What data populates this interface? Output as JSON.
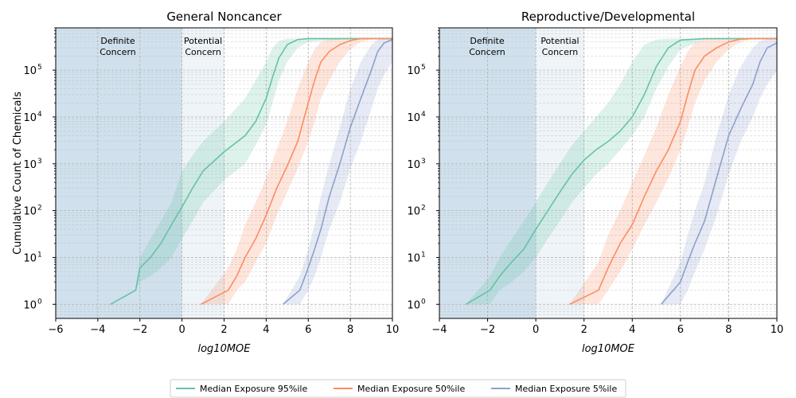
{
  "chart_data": [
    {
      "type": "line",
      "title": "General Noncancer",
      "xlabel": "log10MOE",
      "ylabel": "Cumulative Count of Chemicals",
      "xlim": [
        -6,
        10
      ],
      "ylim": [
        0.5,
        800000
      ],
      "yscale": "log",
      "xticks": [
        -6,
        -4,
        -2,
        0,
        2,
        4,
        6,
        8,
        10
      ],
      "grid": true,
      "regions": [
        {
          "label": "Definite Concern",
          "x0": -6,
          "x1": 0,
          "color": "#a9c9df"
        },
        {
          "label": "Potential Concern",
          "x0": 0,
          "x1": 2,
          "color": "#e3ecf3"
        }
      ],
      "series": [
        {
          "name": "Median Exposure 95%ile",
          "color": "#66c2a5",
          "x": [
            -3.4,
            -2.2,
            -2.0,
            -1.5,
            -1.0,
            -0.5,
            0,
            0.5,
            1.0,
            2.0,
            3.0,
            3.5,
            4.0,
            4.3,
            4.6,
            5.0,
            5.5,
            6.0,
            8.0,
            10.0
          ],
          "y": [
            1,
            2,
            6,
            10,
            20,
            50,
            120,
            300,
            700,
            1800,
            4000,
            8000,
            25000,
            70000,
            180000,
            350000,
            450000,
            470000,
            470000,
            470000
          ],
          "lo": [
            1,
            2,
            3,
            4,
            6,
            10,
            25,
            60,
            150,
            450,
            1000,
            2500,
            7000,
            20000,
            60000,
            150000,
            300000,
            400000,
            470000,
            470000
          ],
          "hi": [
            1,
            2,
            10,
            25,
            60,
            150,
            700,
            1500,
            3000,
            8000,
            25000,
            60000,
            150000,
            300000,
            420000,
            470000,
            470000,
            470000,
            470000,
            470000
          ]
        },
        {
          "name": "Median Exposure 50%ile",
          "color": "#fc8d62",
          "x": [
            0.9,
            2.2,
            2.6,
            3.0,
            3.5,
            4.0,
            4.5,
            5.0,
            5.5,
            6.0,
            6.3,
            6.6,
            7.0,
            7.5,
            8.0,
            8.5,
            9.0,
            10.0
          ],
          "y": [
            1,
            2,
            4,
            10,
            25,
            80,
            300,
            900,
            3000,
            20000,
            60000,
            150000,
            250000,
            350000,
            430000,
            470000,
            470000,
            470000
          ],
          "lo": [
            1,
            1,
            2,
            3,
            8,
            20,
            80,
            250,
            800,
            3000,
            8000,
            25000,
            60000,
            150000,
            280000,
            400000,
            460000,
            470000
          ],
          "hi": [
            1,
            6,
            15,
            50,
            150,
            500,
            2000,
            8000,
            40000,
            150000,
            280000,
            400000,
            460000,
            470000,
            470000,
            470000,
            470000,
            470000
          ]
        },
        {
          "name": "Median Exposure 5%ile",
          "color": "#8da0cb",
          "x": [
            4.8,
            5.6,
            6.0,
            6.3,
            6.6,
            7.0,
            7.5,
            8.0,
            8.5,
            9.0,
            9.3,
            9.6,
            10.0
          ],
          "y": [
            1,
            2,
            6,
            15,
            40,
            200,
            1000,
            6000,
            25000,
            100000,
            250000,
            380000,
            450000
          ],
          "lo": [
            1,
            1,
            2,
            4,
            10,
            40,
            150,
            800,
            3000,
            15000,
            40000,
            80000,
            150000
          ],
          "hi": [
            1,
            4,
            15,
            50,
            200,
            1000,
            6000,
            40000,
            150000,
            350000,
            450000,
            470000,
            470000
          ]
        }
      ]
    },
    {
      "type": "line",
      "title": "Reproductive/Developmental",
      "xlabel": "log10MOE",
      "ylabel": "",
      "xlim": [
        -4,
        10
      ],
      "ylim": [
        0.5,
        800000
      ],
      "yscale": "log",
      "xticks": [
        -4,
        -2,
        0,
        2,
        4,
        6,
        8,
        10
      ],
      "grid": true,
      "regions": [
        {
          "label": "Definite Concern",
          "x0": -4,
          "x1": 0,
          "color": "#a9c9df"
        },
        {
          "label": "Potential Concern",
          "x0": 0,
          "x1": 2,
          "color": "#e3ecf3"
        }
      ],
      "series": [
        {
          "name": "Median Exposure 95%ile",
          "color": "#66c2a5",
          "x": [
            -2.9,
            -1.9,
            -1.5,
            -1.0,
            -0.5,
            0,
            0.5,
            1.0,
            1.5,
            2.0,
            2.5,
            3.0,
            3.5,
            4.0,
            4.5,
            5.0,
            5.5,
            6.0,
            7.0,
            10.0
          ],
          "y": [
            1,
            2,
            4,
            8,
            15,
            40,
            100,
            250,
            600,
            1200,
            2000,
            3000,
            5000,
            10000,
            30000,
            120000,
            300000,
            440000,
            470000,
            470000
          ],
          "lo": [
            1,
            1,
            2,
            3,
            5,
            10,
            25,
            60,
            150,
            300,
            600,
            1000,
            2000,
            4000,
            10000,
            40000,
            120000,
            280000,
            450000,
            470000
          ],
          "hi": [
            1,
            4,
            10,
            25,
            60,
            150,
            400,
            1000,
            2500,
            5000,
            10000,
            20000,
            50000,
            150000,
            350000,
            450000,
            470000,
            470000,
            470000,
            470000
          ]
        },
        {
          "name": "Median Exposure 50%ile",
          "color": "#fc8d62",
          "x": [
            1.4,
            2.6,
            3.0,
            3.5,
            4.0,
            4.5,
            5.0,
            5.5,
            6.0,
            6.3,
            6.6,
            7.0,
            7.5,
            8.0,
            8.5,
            9.0,
            10.0
          ],
          "y": [
            1,
            2,
            6,
            20,
            50,
            200,
            700,
            2000,
            8000,
            30000,
            100000,
            200000,
            300000,
            400000,
            460000,
            470000,
            470000
          ],
          "lo": [
            1,
            1,
            2,
            5,
            15,
            50,
            150,
            500,
            2000,
            6000,
            20000,
            60000,
            150000,
            280000,
            400000,
            460000,
            470000
          ],
          "hi": [
            1,
            8,
            30,
            100,
            400,
            1500,
            6000,
            30000,
            120000,
            250000,
            380000,
            450000,
            470000,
            470000,
            470000,
            470000,
            470000
          ]
        },
        {
          "name": "Median Exposure 5%ile",
          "color": "#8da0cb",
          "x": [
            5.2,
            6.0,
            6.3,
            6.6,
            7.0,
            7.5,
            8.0,
            8.5,
            9.0,
            9.3,
            9.6,
            10.0
          ],
          "y": [
            1,
            3,
            8,
            20,
            60,
            500,
            4000,
            15000,
            50000,
            150000,
            300000,
            380000
          ],
          "lo": [
            1,
            1,
            2,
            5,
            15,
            80,
            600,
            3000,
            10000,
            25000,
            50000,
            100000
          ],
          "hi": [
            1,
            8,
            30,
            100,
            400,
            4000,
            30000,
            120000,
            300000,
            420000,
            460000,
            470000
          ]
        }
      ]
    }
  ],
  "legend": {
    "placement": "bottom-center",
    "items": [
      {
        "label": "Median Exposure 95%ile",
        "color": "#66c2a5"
      },
      {
        "label": "Median Exposure 50%ile",
        "color": "#fc8d62"
      },
      {
        "label": "Median Exposure 5%ile",
        "color": "#8da0cb"
      }
    ]
  }
}
